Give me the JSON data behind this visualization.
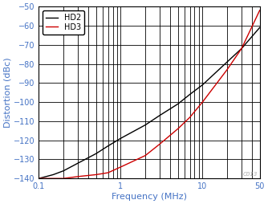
{
  "hd2_x": [
    0.1,
    0.15,
    0.2,
    0.3,
    0.5,
    0.7,
    1.0,
    2.0,
    3.0,
    5.0,
    7.0,
    10.0,
    20.0,
    30.0,
    50.0
  ],
  "hd2_y": [
    -140,
    -138,
    -136,
    -132,
    -127,
    -123,
    -119,
    -112,
    -107,
    -101,
    -96,
    -91,
    -79,
    -72,
    -61
  ],
  "hd3_x": [
    0.1,
    0.15,
    0.2,
    0.3,
    0.5,
    0.7,
    1.0,
    2.0,
    3.0,
    5.0,
    7.0,
    10.0,
    20.0,
    30.0,
    50.0
  ],
  "hd3_y": [
    -140,
    -140,
    -140,
    -139,
    -138,
    -137,
    -134,
    -128,
    -122,
    -114,
    -108,
    -100,
    -83,
    -72,
    -52
  ],
  "xlabel": "Frequency (MHz)",
  "ylabel": "Distortion (dBc)",
  "xlim": [
    0.1,
    50
  ],
  "ylim": [
    -140,
    -50
  ],
  "yticks": [
    -140,
    -130,
    -120,
    -110,
    -100,
    -90,
    -80,
    -70,
    -60,
    -50
  ],
  "hd2_color": "#000000",
  "hd3_color": "#cc0000",
  "grid_color": "#000000",
  "axis_label_color": "#4472c4",
  "tick_label_color": "#4472c4",
  "watermark": "C013",
  "legend_labels": [
    "HD2",
    "HD3"
  ],
  "line_width": 1.0,
  "bg_color": "#ffffff"
}
